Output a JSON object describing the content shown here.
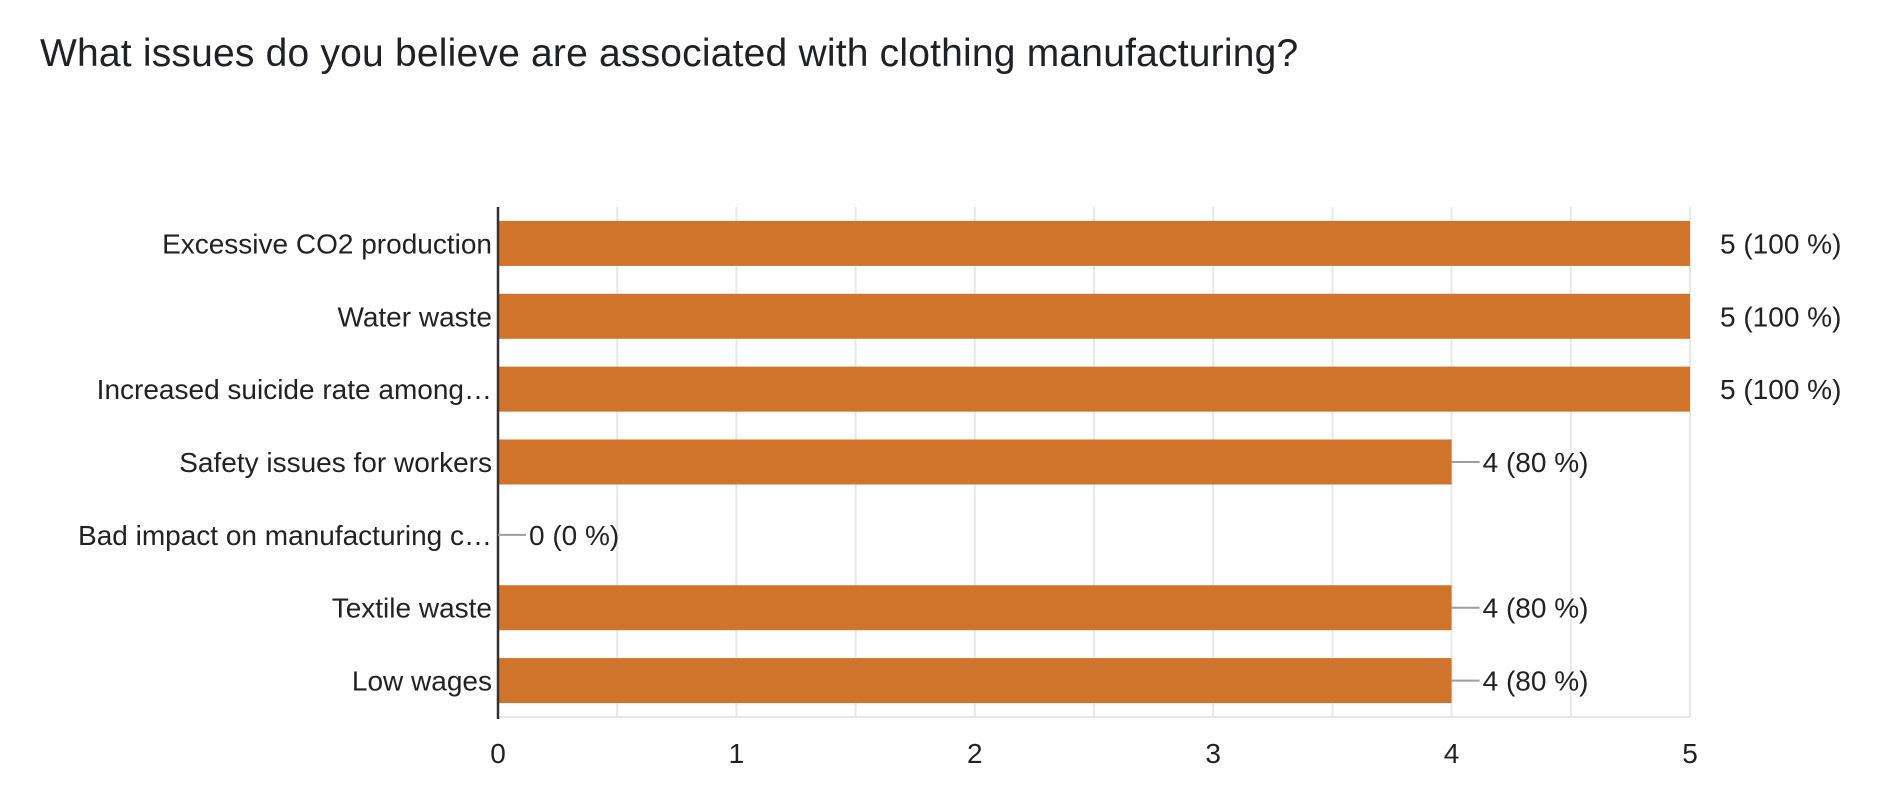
{
  "question": {
    "title": "What issues do you believe are associated with clothing manufacturing?"
  },
  "colors": {
    "bar": "#d0742c",
    "grid": "#e8e8e8",
    "axis": "#333333",
    "leader": "#9e9e9e",
    "text": "#222222"
  },
  "chart_data": {
    "type": "bar",
    "orientation": "horizontal",
    "title": "",
    "xlabel": "",
    "ylabel": "",
    "xlim": [
      0,
      5
    ],
    "x_ticks": [
      "0",
      "1",
      "2",
      "3",
      "4",
      "5"
    ],
    "grid": true,
    "categories": [
      "Excessive CO2 production",
      "Water waste",
      "Increased suicide rate among…",
      "Safety issues for workers",
      "Bad impact on manufacturing c…",
      "Textile waste",
      "Low wages"
    ],
    "values": [
      5,
      5,
      5,
      4,
      0,
      4,
      4
    ],
    "data_labels": [
      "5 (100 %)",
      "5 (100 %)",
      "5 (100 %)",
      "4 (80 %)",
      "0 (0 %)",
      "4 (80 %)",
      "4 (80 %)"
    ]
  }
}
